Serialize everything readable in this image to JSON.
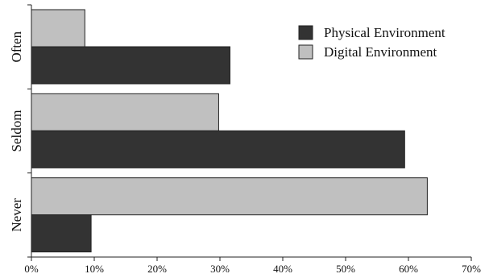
{
  "chart_data": {
    "type": "bar",
    "orientation": "horizontal",
    "categories": [
      "Often",
      "Seldom",
      "Never"
    ],
    "series": [
      {
        "name": "Physical Environment",
        "color": "#333333",
        "values": [
          31.6,
          59.4,
          9.5
        ]
      },
      {
        "name": "Digital Environment",
        "color": "#c0c0c0",
        "values": [
          8.5,
          29.8,
          63.0
        ]
      }
    ],
    "xlim": [
      0,
      70
    ],
    "xticks": [
      0,
      10,
      20,
      30,
      40,
      50,
      60,
      70
    ],
    "tick_labels": [
      "0%",
      "10%",
      "20%",
      "30%",
      "40%",
      "50%",
      "60%",
      "70%"
    ],
    "legend_position": "top-right",
    "grid": false
  }
}
